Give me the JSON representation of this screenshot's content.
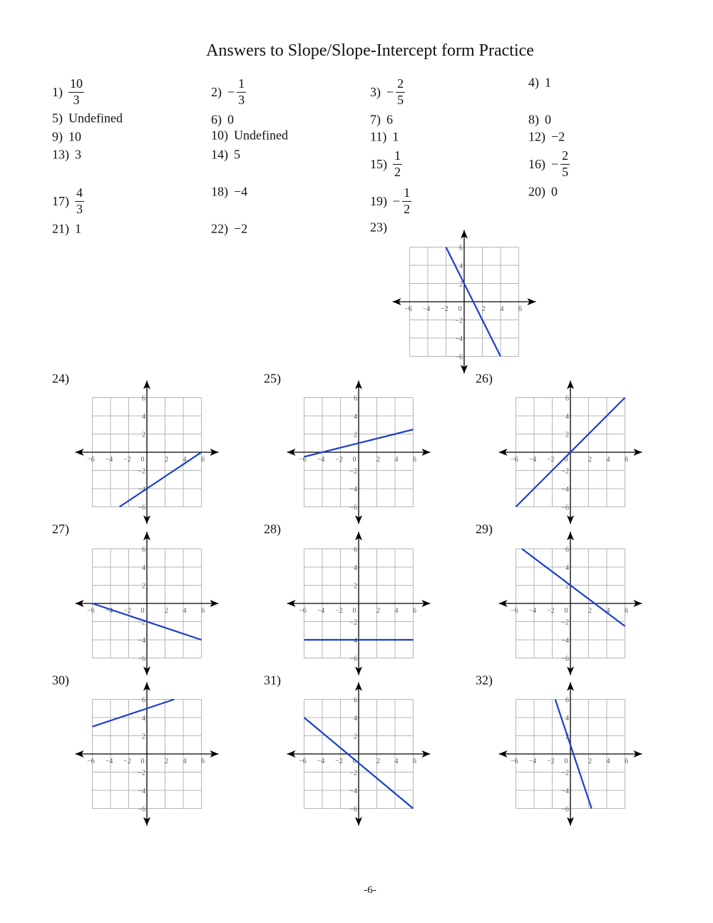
{
  "title": "Answers to Slope/Slope-Intercept form Practice",
  "answers": [
    {
      "num": "1)",
      "sign": "",
      "n": "10",
      "d": "3"
    },
    {
      "num": "2)",
      "sign": "−",
      "n": "1",
      "d": "3"
    },
    {
      "num": "3)",
      "sign": "−",
      "n": "2",
      "d": "5"
    },
    {
      "num": "4)",
      "value": "1"
    },
    {
      "num": "5)",
      "value": "Undefined"
    },
    {
      "num": "6)",
      "value": "0"
    },
    {
      "num": "7)",
      "value": "6"
    },
    {
      "num": "8)",
      "value": "0"
    },
    {
      "num": "9)",
      "value": "10"
    },
    {
      "num": "10)",
      "value": "Undefined"
    },
    {
      "num": "11)",
      "value": "1"
    },
    {
      "num": "12)",
      "value": "−2"
    },
    {
      "num": "13)",
      "value": "3"
    },
    {
      "num": "14)",
      "value": "5"
    },
    {
      "num": "15)",
      "sign": "",
      "n": "1",
      "d": "2"
    },
    {
      "num": "16)",
      "sign": "−",
      "n": "2",
      "d": "5"
    },
    {
      "num": "17)",
      "sign": "",
      "n": "4",
      "d": "3"
    },
    {
      "num": "18)",
      "value": "−4"
    },
    {
      "num": "19)",
      "sign": "−",
      "n": "1",
      "d": "2"
    },
    {
      "num": "20)",
      "value": "0"
    },
    {
      "num": "21)",
      "value": "1"
    },
    {
      "num": "22)",
      "value": "−2"
    }
  ],
  "chart_data": {
    "type": "line",
    "axis_range": [
      -6,
      6
    ],
    "grid": true,
    "grid_step": 2,
    "tick_labels_x": [
      "−6",
      "−4",
      "−2",
      "0",
      "2",
      "4",
      "6"
    ],
    "tick_labels_y": [
      "6",
      "4",
      "2",
      "−2",
      "−4",
      "−6"
    ],
    "line_color": "#1a3fcc",
    "graphs": [
      {
        "label": "23)",
        "points": [
          [
            -2,
            6
          ],
          [
            4,
            -6
          ]
        ]
      },
      {
        "label": "24)",
        "points": [
          [
            -3,
            -6
          ],
          [
            6,
            0
          ]
        ]
      },
      {
        "label": "25)",
        "points": [
          [
            -6,
            -0.5
          ],
          [
            6,
            2.5
          ]
        ]
      },
      {
        "label": "26)",
        "points": [
          [
            -6,
            -6
          ],
          [
            6,
            6
          ]
        ]
      },
      {
        "label": "27)",
        "points": [
          [
            -6,
            0
          ],
          [
            6,
            -4
          ]
        ]
      },
      {
        "label": "28)",
        "points": [
          [
            -6,
            -4
          ],
          [
            6,
            -4
          ]
        ]
      },
      {
        "label": "29)",
        "points": [
          [
            -5.33,
            6
          ],
          [
            6,
            -2.5
          ]
        ]
      },
      {
        "label": "30)",
        "points": [
          [
            -6,
            3
          ],
          [
            3,
            6
          ]
        ]
      },
      {
        "label": "31)",
        "points": [
          [
            -6,
            4
          ],
          [
            6,
            -6
          ]
        ]
      },
      {
        "label": "32)",
        "points": [
          [
            -1.67,
            6
          ],
          [
            2.33,
            -6
          ]
        ]
      }
    ]
  },
  "footer": "-6-"
}
